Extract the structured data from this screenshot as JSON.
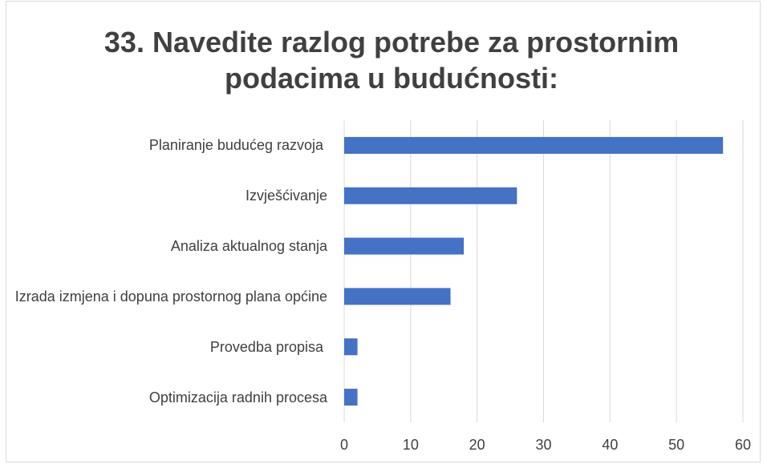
{
  "chart_data": {
    "type": "bar",
    "orientation": "horizontal",
    "title": "33. Navedite razlog potrebe za prostornim podacima u budućnosti:",
    "categories": [
      "Planiranje budućeg razvoja ",
      "Izvješćivanje",
      "Analiza aktualnog stanja",
      "Izrada izmjena i dopuna prostornog plana općine",
      "Provedba propisa ",
      "Optimizacija radnih procesa"
    ],
    "values": [
      57,
      26,
      18,
      16,
      2,
      2
    ],
    "color": "#4472c4",
    "xlim": [
      0,
      60
    ],
    "xticks": [
      0,
      10,
      20,
      30,
      40,
      50,
      60
    ],
    "grid": true
  }
}
